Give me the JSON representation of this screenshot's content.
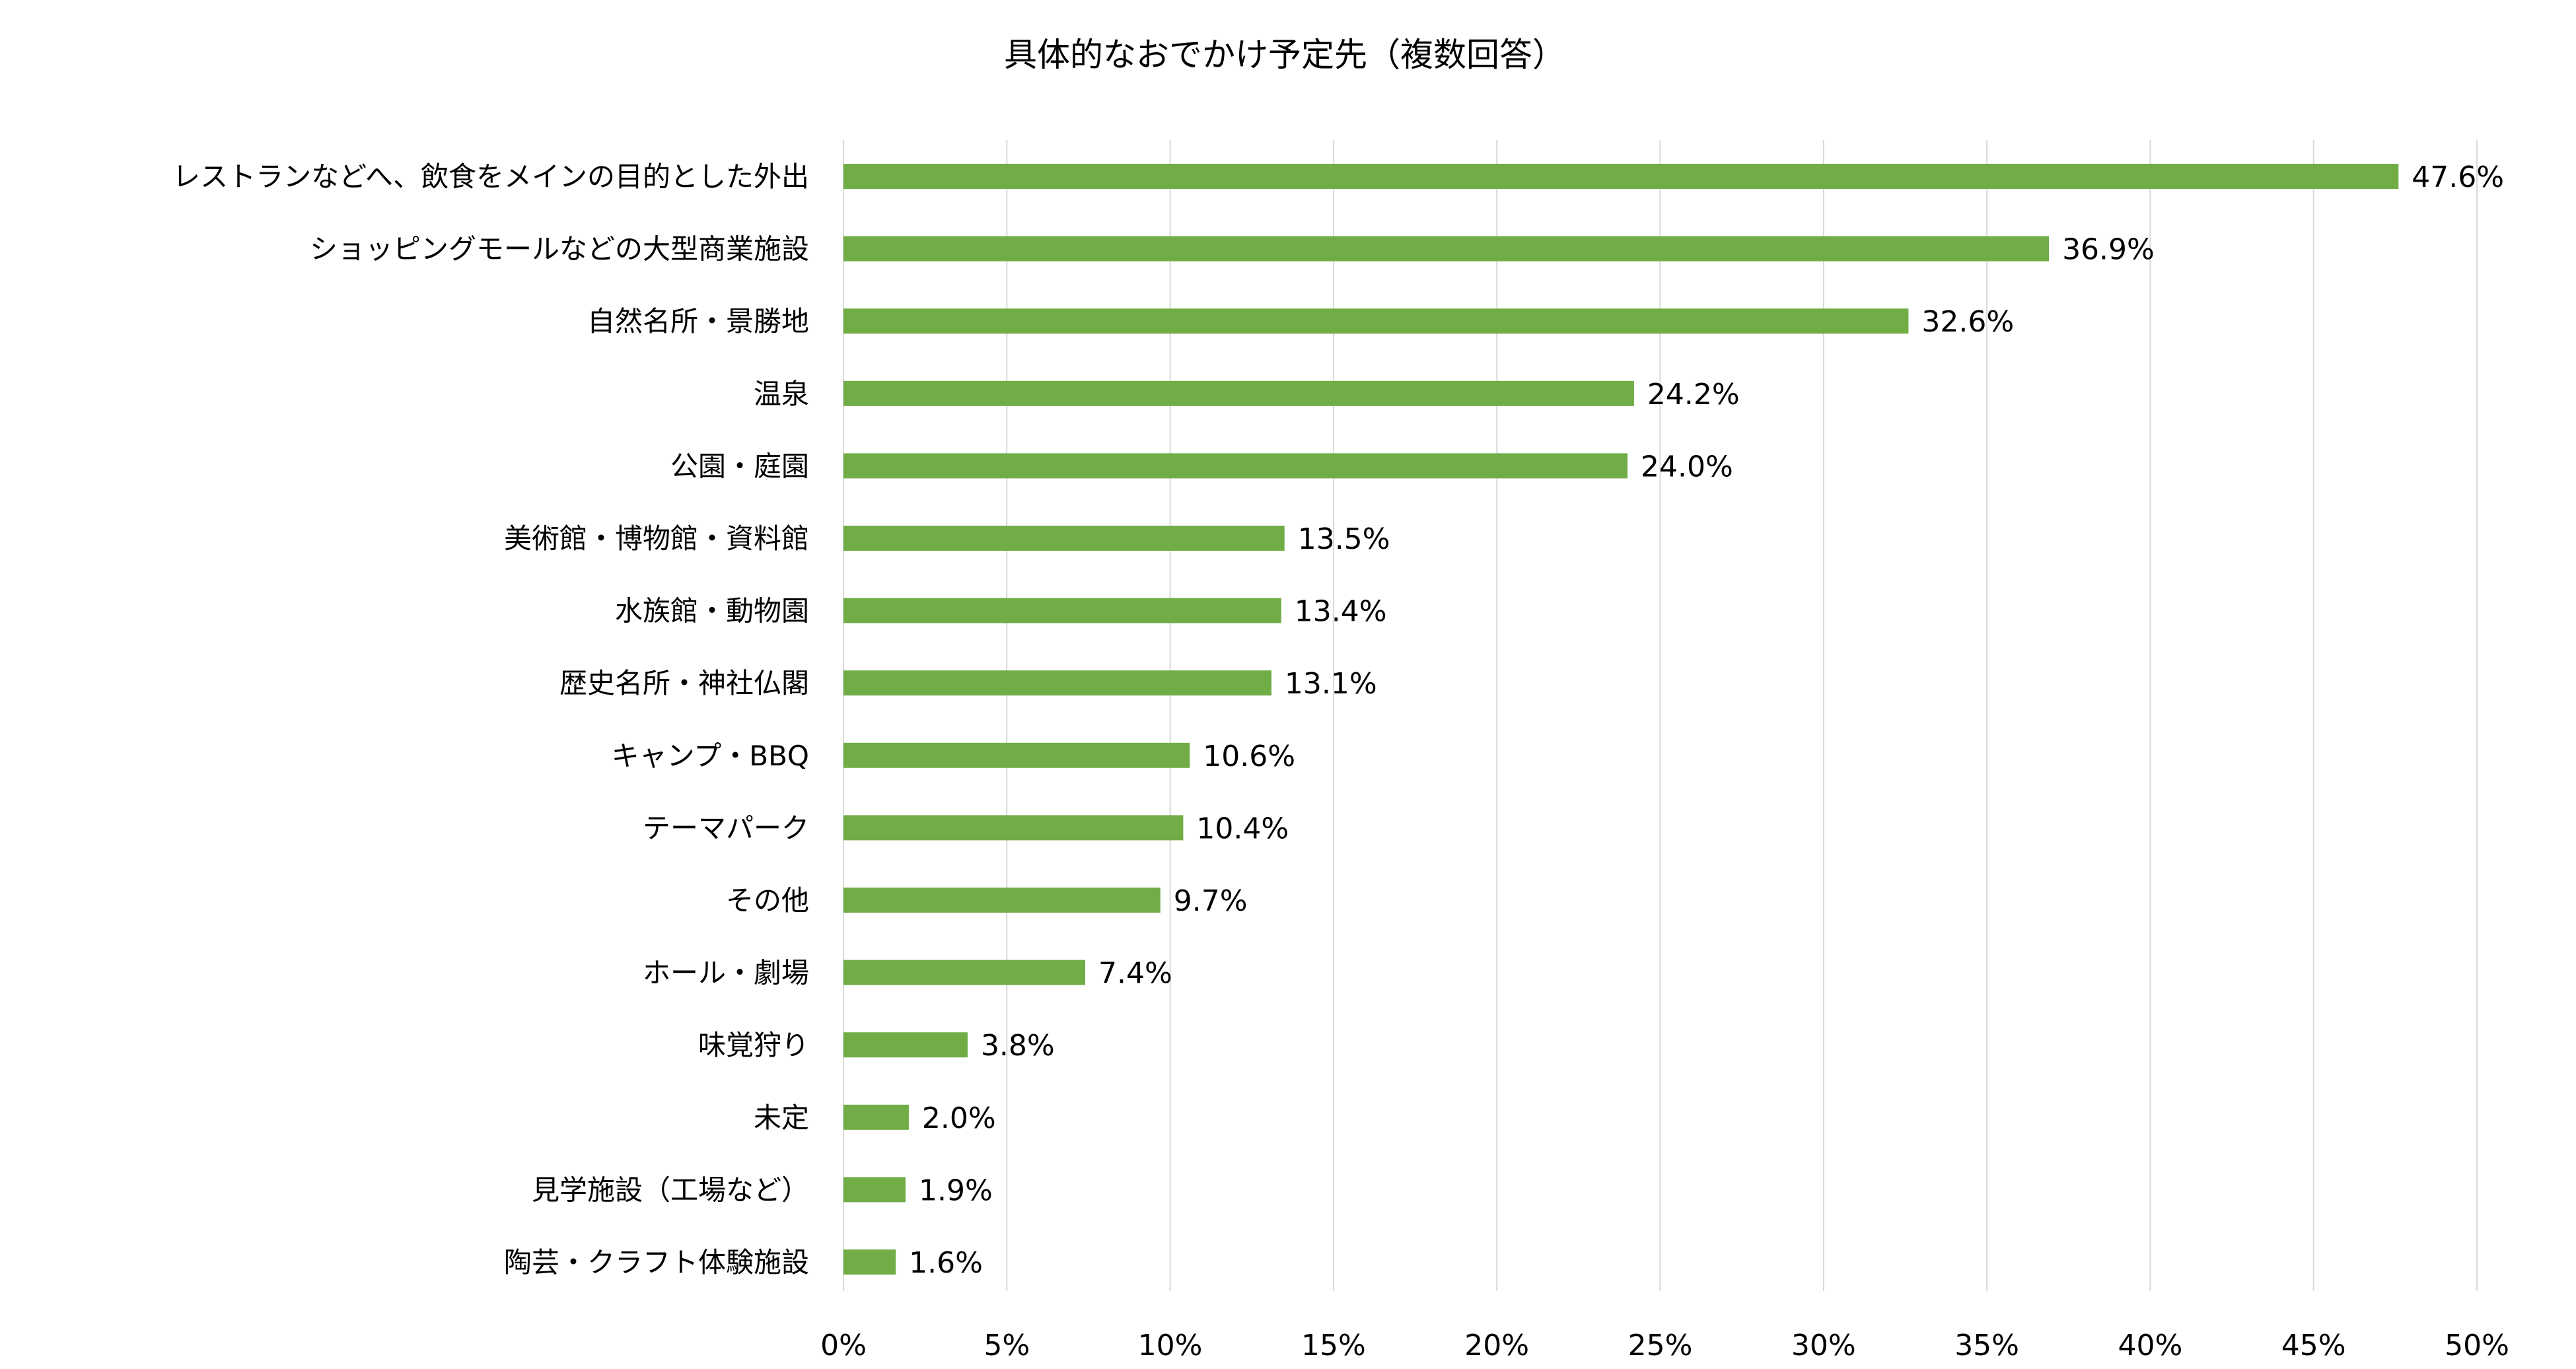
{
  "chart_data": {
    "type": "bar",
    "orientation": "horizontal",
    "title": "具体的なおでかけ予定先（複数回答）",
    "xlabel": "",
    "ylabel": "",
    "xlim": [
      0,
      50
    ],
    "grid": true,
    "legend": "none",
    "bar_color": "#70ad47",
    "grid_color": "#d9d9d9",
    "categories": [
      "レストランなどへ、飲食をメインの目的とした外出",
      "ショッピングモールなどの大型商業施設",
      "自然名所・景勝地",
      "温泉",
      "公園・庭園",
      "美術館・博物館・資料館",
      "水族館・動物園",
      "歴史名所・神社仏閣",
      "キャンプ・BBQ",
      "テーマパーク",
      "その他",
      "ホール・劇場",
      "味覚狩り",
      "未定",
      "見学施設（工場など）",
      "陶芸・クラフト体験施設"
    ],
    "values": [
      47.6,
      36.9,
      32.6,
      24.2,
      24.0,
      13.5,
      13.4,
      13.1,
      10.6,
      10.4,
      9.7,
      7.4,
      3.8,
      2.0,
      1.9,
      1.6
    ],
    "value_labels": [
      "47.6%",
      "36.9%",
      "32.6%",
      "24.2%",
      "24.0%",
      "13.5%",
      "13.4%",
      "13.1%",
      "10.6%",
      "10.4%",
      "9.7%",
      "7.4%",
      "3.8%",
      "2.0%",
      "1.9%",
      "1.6%"
    ],
    "x_ticks": [
      0,
      5,
      10,
      15,
      20,
      25,
      30,
      35,
      40,
      45,
      50
    ],
    "x_tick_labels": [
      "0%",
      "5%",
      "10%",
      "15%",
      "20%",
      "25%",
      "30%",
      "35%",
      "40%",
      "45%",
      "50%"
    ]
  }
}
